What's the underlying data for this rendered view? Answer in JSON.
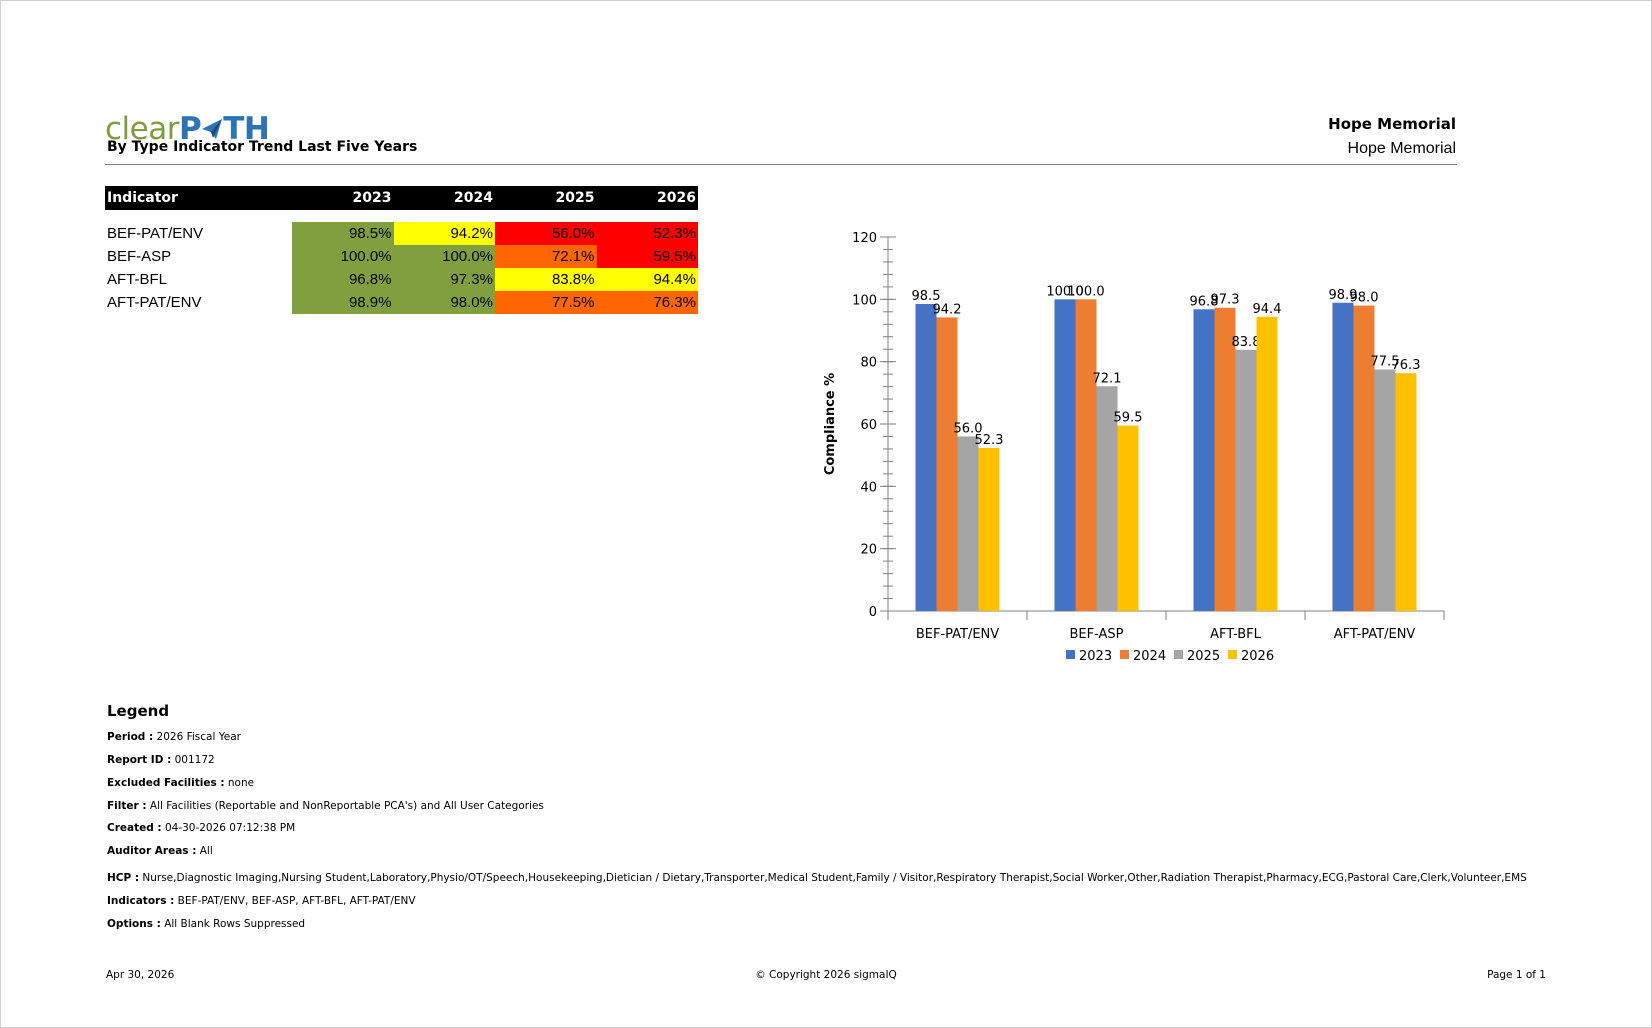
{
  "header": {
    "logo_text_a": "clear",
    "logo_text_b1": "P",
    "logo_text_b2": "TH",
    "report_title": "By Type Indicator Trend Last Five Years",
    "facility_title": "Hope Memorial",
    "facility_sub": "Hope Memorial"
  },
  "table": {
    "header_label": "Indicator",
    "years": [
      "2023",
      "2024",
      "2025",
      "2026"
    ],
    "rows": [
      {
        "name": "BEF-PAT/ENV",
        "values": [
          "98.5%",
          "94.2%",
          "56.0%",
          "52.3%"
        ],
        "colors": [
          "#80a040",
          "#ffff00",
          "#ff0000",
          "#ff0000"
        ]
      },
      {
        "name": "BEF-ASP",
        "values": [
          "100.0%",
          "100.0%",
          "72.1%",
          "59.5%"
        ],
        "colors": [
          "#80a040",
          "#80a040",
          "#ff6600",
          "#ff0000"
        ]
      },
      {
        "name": "AFT-BFL",
        "values": [
          "96.8%",
          "97.3%",
          "83.8%",
          "94.4%"
        ],
        "colors": [
          "#80a040",
          "#80a040",
          "#ffff00",
          "#ffff00"
        ]
      },
      {
        "name": "AFT-PAT/ENV",
        "values": [
          "98.9%",
          "98.0%",
          "77.5%",
          "76.3%"
        ],
        "colors": [
          "#80a040",
          "#80a040",
          "#ff6600",
          "#ff6600"
        ]
      }
    ]
  },
  "chart_data": {
    "type": "bar",
    "categories": [
      "BEF-PAT/ENV",
      "BEF-ASP",
      "AFT-BFL",
      "AFT-PAT/ENV"
    ],
    "series": [
      {
        "name": "2023",
        "values": [
          98.5,
          100.0,
          96.8,
          98.9
        ],
        "color": "#4472c4"
      },
      {
        "name": "2024",
        "values": [
          94.2,
          100.0,
          97.3,
          98.0
        ],
        "color": "#ed7d31"
      },
      {
        "name": "2025",
        "values": [
          56.0,
          72.1,
          83.8,
          77.5
        ],
        "color": "#a5a5a5"
      },
      {
        "name": "2026",
        "values": [
          52.3,
          59.5,
          94.4,
          76.3
        ],
        "color": "#ffc000"
      }
    ],
    "ylabel": "Compliance %",
    "ylim": [
      0,
      120
    ],
    "yticks": [
      0,
      20,
      40,
      60,
      80,
      100,
      120
    ],
    "legend_position": "bottom",
    "data_labels": true
  },
  "legend": {
    "title": "Legend",
    "items": [
      {
        "key": "Period :",
        "value": "2026 Fiscal Year"
      },
      {
        "key": "Report ID :",
        "value": "001172"
      },
      {
        "key": "Excluded Facilities :",
        "value": "none"
      },
      {
        "key": "Filter :",
        "value": "All Facilities (Reportable and NonReportable PCA's) and All User Categories"
      },
      {
        "key": "Created :",
        "value": "04-30-2026 07:12:38 PM"
      },
      {
        "key": "Auditor Areas :",
        "value": "All"
      },
      {
        "key": "HCP :",
        "value": "Nurse,Diagnostic Imaging,Nursing Student,Laboratory,Physio/OT/Speech,Housekeeping,Dietician / Dietary,Transporter,Medical Student,Family / Visitor,Respiratory Therapist,Social Worker,Other,Radiation Therapist,Pharmacy,ECG,Pastoral Care,Clerk,Volunteer,EMS"
      },
      {
        "key": "Indicators :",
        "value": "BEF-PAT/ENV, BEF-ASP, AFT-BFL, AFT-PAT/ENV"
      },
      {
        "key": "Options :",
        "value": "All Blank Rows Suppressed"
      }
    ]
  },
  "footer": {
    "date": "Apr 30, 2026",
    "copyright": "© Copyright 2026 sigmaIQ",
    "page": "Page 1 of 1"
  }
}
